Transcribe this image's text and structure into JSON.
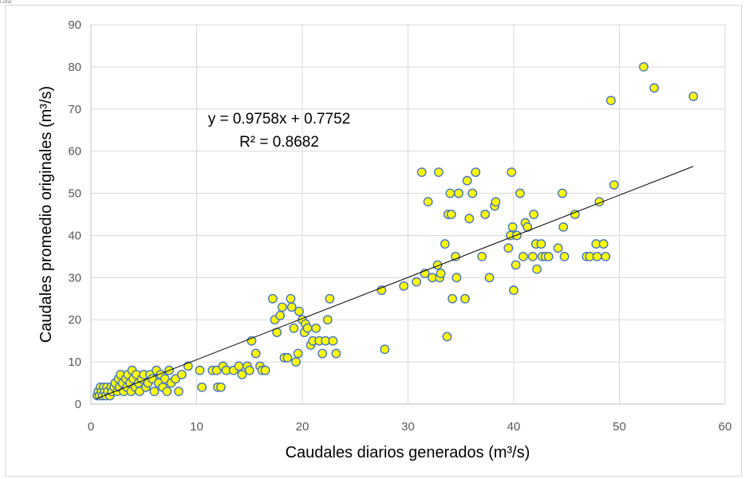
{
  "corner_text": "Liotar",
  "colors": {
    "point_fill": "#ffff00",
    "point_stroke": "#4472c4",
    "trendline": "#000000",
    "grid": "#d9d9d9",
    "axis": "#bfbfbf"
  },
  "chart_data": {
    "type": "scatter",
    "title": "",
    "xlabel": "Caudales diarios generados  (m³/s)",
    "ylabel": "Caudales promedio  originales (m³/s)",
    "xlim": [
      0,
      60
    ],
    "ylim": [
      0,
      90
    ],
    "x_ticks": [
      0,
      10,
      20,
      30,
      40,
      50,
      60
    ],
    "y_ticks": [
      0,
      10,
      20,
      30,
      40,
      50,
      60,
      70,
      80,
      90
    ],
    "grid": true,
    "legend": "none",
    "trendline": {
      "equation": "y = 0.9758x + 0.7752",
      "r_squared": "R² = 0.8682",
      "slope": 0.9758,
      "intercept": 0.7752,
      "x_range": [
        0.5,
        57
      ]
    },
    "points": [
      [
        0.6,
        2
      ],
      [
        0.7,
        3
      ],
      [
        0.8,
        2
      ],
      [
        0.9,
        4
      ],
      [
        1.0,
        3
      ],
      [
        1.1,
        2
      ],
      [
        1.2,
        4
      ],
      [
        1.3,
        3
      ],
      [
        1.4,
        2
      ],
      [
        1.5,
        4
      ],
      [
        1.6,
        3
      ],
      [
        1.8,
        2
      ],
      [
        1.9,
        4
      ],
      [
        2.0,
        3
      ],
      [
        2.2,
        4
      ],
      [
        2.3,
        5
      ],
      [
        2.5,
        3
      ],
      [
        2.6,
        6
      ],
      [
        2.7,
        4
      ],
      [
        2.8,
        7
      ],
      [
        3.0,
        5
      ],
      [
        3.1,
        3
      ],
      [
        3.3,
        6
      ],
      [
        3.4,
        4
      ],
      [
        3.5,
        7
      ],
      [
        3.7,
        5
      ],
      [
        3.8,
        3
      ],
      [
        3.9,
        8
      ],
      [
        4.0,
        6
      ],
      [
        4.2,
        4
      ],
      [
        4.3,
        7
      ],
      [
        4.5,
        5
      ],
      [
        4.6,
        3
      ],
      [
        4.8,
        6
      ],
      [
        5.0,
        7
      ],
      [
        5.2,
        4
      ],
      [
        5.4,
        5
      ],
      [
        5.6,
        7
      ],
      [
        5.8,
        6
      ],
      [
        6.0,
        3
      ],
      [
        6.2,
        8
      ],
      [
        6.4,
        5
      ],
      [
        6.6,
        7
      ],
      [
        6.8,
        4
      ],
      [
        7.0,
        6
      ],
      [
        7.2,
        3
      ],
      [
        7.4,
        8
      ],
      [
        7.6,
        5
      ],
      [
        8.0,
        6
      ],
      [
        8.3,
        3
      ],
      [
        8.6,
        7
      ],
      [
        9.2,
        9
      ],
      [
        10.3,
        8
      ],
      [
        10.5,
        4
      ],
      [
        11.5,
        8
      ],
      [
        11.9,
        8
      ],
      [
        12.0,
        4
      ],
      [
        12.3,
        4
      ],
      [
        12.5,
        9
      ],
      [
        12.8,
        8
      ],
      [
        13.5,
        8
      ],
      [
        14.0,
        9
      ],
      [
        14.3,
        7
      ],
      [
        14.8,
        9
      ],
      [
        15.0,
        8
      ],
      [
        15.2,
        15
      ],
      [
        15.6,
        12
      ],
      [
        16.0,
        9
      ],
      [
        16.2,
        8
      ],
      [
        16.5,
        8
      ],
      [
        17.2,
        25
      ],
      [
        17.4,
        20
      ],
      [
        17.6,
        17
      ],
      [
        17.9,
        21
      ],
      [
        18.1,
        23
      ],
      [
        18.3,
        11
      ],
      [
        18.6,
        11
      ],
      [
        18.9,
        25
      ],
      [
        19.0,
        23
      ],
      [
        19.2,
        18
      ],
      [
        19.4,
        10
      ],
      [
        19.6,
        12
      ],
      [
        19.7,
        22
      ],
      [
        20.0,
        20
      ],
      [
        20.2,
        17
      ],
      [
        20.3,
        19
      ],
      [
        20.5,
        18
      ],
      [
        20.8,
        14
      ],
      [
        21.0,
        15
      ],
      [
        21.3,
        18
      ],
      [
        21.6,
        15
      ],
      [
        21.9,
        12
      ],
      [
        22.2,
        15
      ],
      [
        22.4,
        20
      ],
      [
        22.6,
        25
      ],
      [
        22.9,
        15
      ],
      [
        23.2,
        12
      ],
      [
        27.5,
        27
      ],
      [
        27.8,
        13
      ],
      [
        29.6,
        28
      ],
      [
        30.8,
        29
      ],
      [
        31.3,
        55
      ],
      [
        31.6,
        31
      ],
      [
        31.9,
        48
      ],
      [
        32.3,
        30
      ],
      [
        32.8,
        33
      ],
      [
        32.9,
        55
      ],
      [
        33.0,
        30
      ],
      [
        33.1,
        31
      ],
      [
        33.5,
        38
      ],
      [
        33.7,
        16
      ],
      [
        33.8,
        45
      ],
      [
        34.0,
        50
      ],
      [
        34.1,
        45
      ],
      [
        34.2,
        25
      ],
      [
        34.5,
        35
      ],
      [
        34.6,
        30
      ],
      [
        34.8,
        50
      ],
      [
        35.4,
        25
      ],
      [
        35.6,
        53
      ],
      [
        35.8,
        44
      ],
      [
        36.1,
        50
      ],
      [
        36.4,
        55
      ],
      [
        37.0,
        35
      ],
      [
        37.3,
        45
      ],
      [
        37.7,
        30
      ],
      [
        38.2,
        47
      ],
      [
        38.3,
        48
      ],
      [
        39.5,
        37
      ],
      [
        39.7,
        40
      ],
      [
        39.8,
        55
      ],
      [
        39.9,
        42
      ],
      [
        40.0,
        27
      ],
      [
        40.2,
        33
      ],
      [
        40.3,
        40
      ],
      [
        40.6,
        50
      ],
      [
        40.9,
        35
      ],
      [
        41.1,
        43
      ],
      [
        41.3,
        42
      ],
      [
        41.8,
        35
      ],
      [
        41.9,
        45
      ],
      [
        42.1,
        38
      ],
      [
        42.2,
        32
      ],
      [
        42.6,
        38
      ],
      [
        42.7,
        35
      ],
      [
        43.0,
        35
      ],
      [
        43.3,
        35
      ],
      [
        44.2,
        37
      ],
      [
        44.6,
        50
      ],
      [
        44.7,
        42
      ],
      [
        44.8,
        35
      ],
      [
        45.8,
        45
      ],
      [
        46.9,
        35
      ],
      [
        47.2,
        35
      ],
      [
        47.8,
        38
      ],
      [
        47.9,
        35
      ],
      [
        48.1,
        48
      ],
      [
        48.5,
        38
      ],
      [
        48.7,
        35
      ],
      [
        49.2,
        72
      ],
      [
        49.5,
        52
      ],
      [
        52.3,
        80
      ],
      [
        53.3,
        75
      ],
      [
        57.0,
        73
      ]
    ]
  }
}
